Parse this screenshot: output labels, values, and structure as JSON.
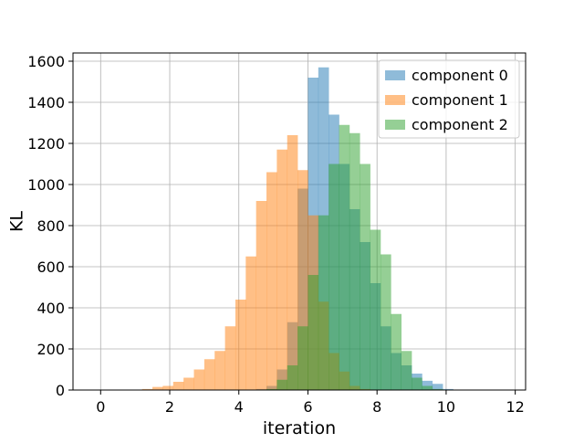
{
  "chart_data": {
    "type": "bar",
    "subtype": "overlapping-histogram",
    "title": "",
    "xlabel": "iteration",
    "ylabel": "KL",
    "xlim": [
      -0.8,
      12.3
    ],
    "ylim": [
      0,
      1640
    ],
    "xticks": [
      0,
      2,
      4,
      6,
      8,
      10,
      12
    ],
    "yticks": [
      0,
      200,
      400,
      600,
      800,
      1000,
      1200,
      1400,
      1600
    ],
    "grid": true,
    "legend_position": "top-right",
    "bin_width": 0.3,
    "series": [
      {
        "name": "component 0",
        "color": "#1f77b4",
        "opacity": 0.5,
        "bins": [
          [
            4.5,
            5
          ],
          [
            4.8,
            20
          ],
          [
            5.1,
            100
          ],
          [
            5.4,
            330
          ],
          [
            5.7,
            980
          ],
          [
            6.0,
            1520
          ],
          [
            6.3,
            1570
          ],
          [
            6.6,
            1340
          ],
          [
            6.9,
            1100
          ],
          [
            7.2,
            880
          ],
          [
            7.5,
            720
          ],
          [
            7.8,
            520
          ],
          [
            8.1,
            310
          ],
          [
            8.4,
            180
          ],
          [
            8.7,
            120
          ],
          [
            9.0,
            80
          ],
          [
            9.3,
            45
          ],
          [
            9.6,
            30
          ],
          [
            9.9,
            5
          ]
        ]
      },
      {
        "name": "component 1",
        "color": "#ff7f0e",
        "opacity": 0.5,
        "bins": [
          [
            1.2,
            5
          ],
          [
            1.5,
            15
          ],
          [
            1.8,
            20
          ],
          [
            2.1,
            40
          ],
          [
            2.4,
            60
          ],
          [
            2.7,
            100
          ],
          [
            3.0,
            150
          ],
          [
            3.3,
            190
          ],
          [
            3.6,
            310
          ],
          [
            3.9,
            440
          ],
          [
            4.2,
            650
          ],
          [
            4.5,
            920
          ],
          [
            4.8,
            1060
          ],
          [
            5.1,
            1170
          ],
          [
            5.4,
            1240
          ],
          [
            5.7,
            1070
          ],
          [
            6.0,
            850
          ],
          [
            6.3,
            430
          ],
          [
            6.6,
            180
          ],
          [
            6.9,
            90
          ],
          [
            7.2,
            20
          ],
          [
            7.5,
            5
          ]
        ]
      },
      {
        "name": "component 2",
        "color": "#2ca02c",
        "opacity": 0.5,
        "bins": [
          [
            4.8,
            5
          ],
          [
            5.1,
            50
          ],
          [
            5.4,
            120
          ],
          [
            5.7,
            310
          ],
          [
            6.0,
            560
          ],
          [
            6.3,
            850
          ],
          [
            6.6,
            1100
          ],
          [
            6.9,
            1290
          ],
          [
            7.2,
            1250
          ],
          [
            7.5,
            1100
          ],
          [
            7.8,
            780
          ],
          [
            8.1,
            660
          ],
          [
            8.4,
            370
          ],
          [
            8.7,
            190
          ],
          [
            9.0,
            60
          ],
          [
            9.3,
            20
          ],
          [
            9.6,
            5
          ]
        ]
      }
    ]
  }
}
